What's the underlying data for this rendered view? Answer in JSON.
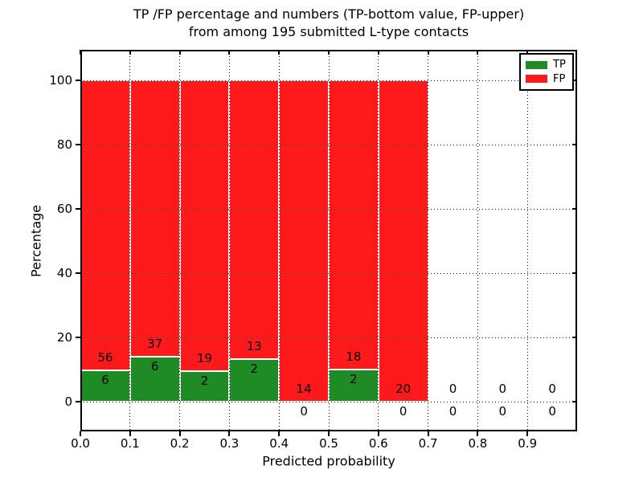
{
  "title": {
    "line1": "TP /FP percentage and numbers (TP-bottom value, FP-upper)",
    "line2": "from among 195 submitted L-type contacts"
  },
  "chart_data": {
    "type": "bar",
    "stacked": true,
    "title": "TP /FP percentage and numbers (TP-bottom value, FP-upper)\nfrom among 195 submitted L-type contacts",
    "xlabel": "Predicted probability",
    "ylabel": "Percentage",
    "total_contacts": 195,
    "xlim": [
      0.0,
      1.0
    ],
    "ylim": [
      -10,
      110
    ],
    "grid": true,
    "grid_style": "dotted",
    "background_color": "#ffffff",
    "bar_edge_color": "#ffffff",
    "xtick_labels": [
      "0.0",
      "0.1",
      "0.2",
      "0.3",
      "0.4",
      "0.5",
      "0.6",
      "0.7",
      "0.8",
      "0.9"
    ],
    "ytick_labels": [
      "0",
      "20",
      "40",
      "60",
      "80",
      "100"
    ],
    "legend": {
      "position": "upper right",
      "entries": [
        {
          "label": "TP",
          "color": "#1f8b24"
        },
        {
          "label": "FP",
          "color": "#fe1a1a"
        }
      ]
    },
    "bins": [
      {
        "range": [
          0.0,
          0.1
        ],
        "tp": 6,
        "fp": 56,
        "tp_pct": 9.68,
        "fp_pct": 90.32
      },
      {
        "range": [
          0.1,
          0.2
        ],
        "tp": 6,
        "fp": 37,
        "tp_pct": 13.95,
        "fp_pct": 86.05
      },
      {
        "range": [
          0.2,
          0.3
        ],
        "tp": 2,
        "fp": 19,
        "tp_pct": 9.52,
        "fp_pct": 90.48
      },
      {
        "range": [
          0.3,
          0.4
        ],
        "tp": 2,
        "fp": 13,
        "tp_pct": 13.33,
        "fp_pct": 86.67
      },
      {
        "range": [
          0.4,
          0.5
        ],
        "tp": 0,
        "fp": 14,
        "tp_pct": 0,
        "fp_pct": 100
      },
      {
        "range": [
          0.5,
          0.6
        ],
        "tp": 2,
        "fp": 18,
        "tp_pct": 10,
        "fp_pct": 90
      },
      {
        "range": [
          0.6,
          0.7
        ],
        "tp": 0,
        "fp": 20,
        "tp_pct": 0,
        "fp_pct": 100
      },
      {
        "range": [
          0.7,
          0.8
        ],
        "tp": 0,
        "fp": 0,
        "tp_pct": 0,
        "fp_pct": 0
      },
      {
        "range": [
          0.8,
          0.9
        ],
        "tp": 0,
        "fp": 0,
        "tp_pct": 0,
        "fp_pct": 0
      },
      {
        "range": [
          0.9,
          1.0
        ],
        "tp": 0,
        "fp": 0,
        "tp_pct": 0,
        "fp_pct": 0
      }
    ]
  }
}
